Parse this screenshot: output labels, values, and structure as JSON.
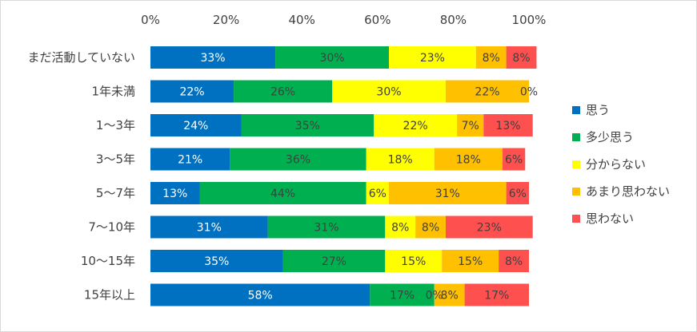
{
  "chart_data": {
    "type": "bar",
    "orientation": "horizontal",
    "stacked": true,
    "percent_format": true,
    "xlim": [
      0,
      100
    ],
    "xticks": [
      "0%",
      "20%",
      "40%",
      "60%",
      "80%",
      "100%"
    ],
    "xaxis_position": "top",
    "grid": false,
    "legend_position": "right",
    "categories": [
      "まだ活動していない",
      "1年未満",
      "1～3年",
      "3～5年",
      "5～7年",
      "7～10年",
      "10～15年",
      "15年以上"
    ],
    "series": [
      {
        "name": "思う",
        "color": "#0070c0",
        "label_color": "#ffffff",
        "values": [
          33,
          22,
          24,
          21,
          13,
          31,
          35,
          58
        ],
        "labels": [
          "33%",
          "22%",
          "24%",
          "21%",
          "13%",
          "31%",
          "35%",
          "58%"
        ]
      },
      {
        "name": "多少思う",
        "color": "#00b050",
        "label_color": "#404040",
        "values": [
          30,
          26,
          35,
          36,
          44,
          31,
          27,
          17
        ],
        "labels": [
          "30%",
          "26%",
          "35%",
          "36%",
          "44%",
          "31%",
          "27%",
          "17%"
        ]
      },
      {
        "name": "分からない",
        "color": "#ffff00",
        "label_color": "#404040",
        "values": [
          23,
          30,
          22,
          18,
          6,
          8,
          15,
          0
        ],
        "labels": [
          "23%",
          "30%",
          "22%",
          "18%",
          "6%",
          "8%",
          "15%",
          "0%"
        ]
      },
      {
        "name": "あまり思わない",
        "color": "#ffc000",
        "label_color": "#404040",
        "values": [
          8,
          22,
          7,
          18,
          31,
          8,
          15,
          8
        ],
        "labels": [
          "8%",
          "22%",
          "7%",
          "18%",
          "31%",
          "8%",
          "15%",
          "8%"
        ]
      },
      {
        "name": "思わない",
        "color": "#ff5050",
        "label_color": "#404040",
        "values": [
          8,
          0,
          13,
          6,
          6,
          23,
          8,
          17
        ],
        "labels": [
          "8%",
          "0%",
          "13%",
          "6%",
          "6%",
          "23%",
          "8%",
          "17%"
        ]
      }
    ]
  }
}
